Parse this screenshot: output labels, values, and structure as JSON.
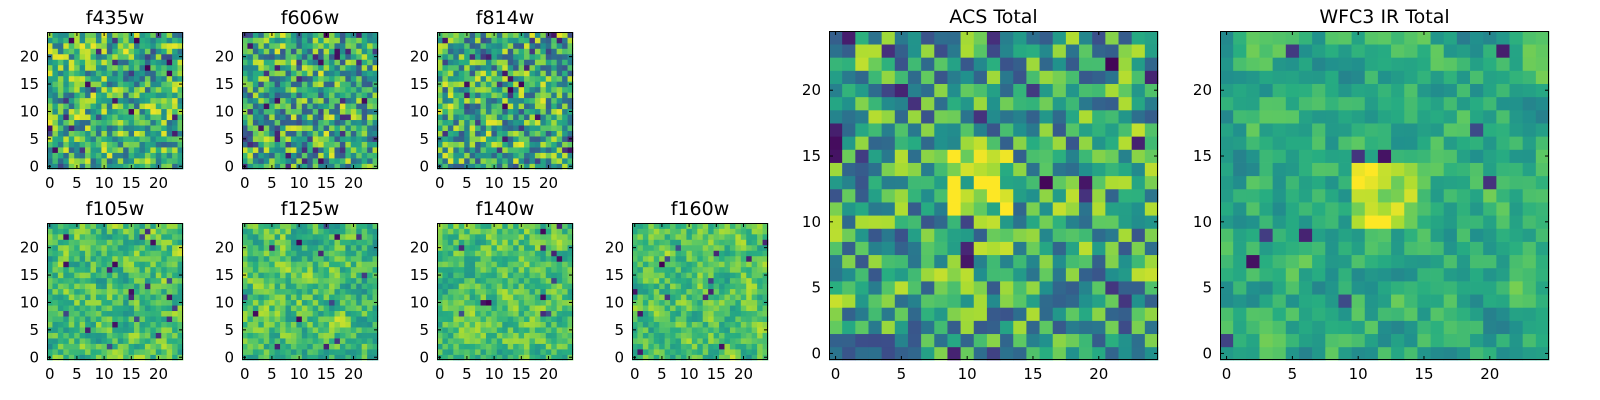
{
  "figure": {
    "colormap": "viridis",
    "color_range": [
      "#440154",
      "#fde725"
    ],
    "background": "#ffffff"
  },
  "chart_data": [
    {
      "type": "heatmap",
      "title": "f435w",
      "grid_size": 25,
      "xlim": [
        0,
        24
      ],
      "ylim": [
        0,
        24
      ],
      "xticks": [
        0,
        5,
        10,
        15,
        20
      ],
      "yticks": [
        0,
        5,
        10,
        15,
        20
      ],
      "seed": 11,
      "bias": 0.65,
      "noise": 0.35,
      "smooth": 0.1,
      "dark_frac": 0.05
    },
    {
      "type": "heatmap",
      "title": "f606w",
      "grid_size": 25,
      "xlim": [
        0,
        24
      ],
      "ylim": [
        0,
        24
      ],
      "xticks": [
        0,
        5,
        10,
        15,
        20
      ],
      "yticks": [
        0,
        5,
        10,
        15,
        20
      ],
      "seed": 23,
      "bias": 0.62,
      "noise": 0.38,
      "smooth": 0.1,
      "dark_frac": 0.06
    },
    {
      "type": "heatmap",
      "title": "f814w",
      "grid_size": 25,
      "xlim": [
        0,
        24
      ],
      "ylim": [
        0,
        24
      ],
      "xticks": [
        0,
        5,
        10,
        15,
        20
      ],
      "yticks": [
        0,
        5,
        10,
        15,
        20
      ],
      "seed": 37,
      "bias": 0.62,
      "noise": 0.38,
      "smooth": 0.1,
      "dark_frac": 0.06
    },
    {
      "type": "heatmap",
      "title": "f105w",
      "grid_size": 25,
      "xlim": [
        0,
        24
      ],
      "ylim": [
        0,
        24
      ],
      "xticks": [
        0,
        5,
        10,
        15,
        20
      ],
      "yticks": [
        0,
        5,
        10,
        15,
        20
      ],
      "seed": 41,
      "bias": 0.7,
      "noise": 0.3,
      "smooth": 0.45,
      "dark_frac": 0.03
    },
    {
      "type": "heatmap",
      "title": "f125w",
      "grid_size": 25,
      "xlim": [
        0,
        24
      ],
      "ylim": [
        0,
        24
      ],
      "xticks": [
        0,
        5,
        10,
        15,
        20
      ],
      "yticks": [
        0,
        5,
        10,
        15,
        20
      ],
      "seed": 53,
      "bias": 0.7,
      "noise": 0.3,
      "smooth": 0.45,
      "dark_frac": 0.03
    },
    {
      "type": "heatmap",
      "title": "f140w",
      "grid_size": 25,
      "xlim": [
        0,
        24
      ],
      "ylim": [
        0,
        24
      ],
      "xticks": [
        0,
        5,
        10,
        15,
        20
      ],
      "yticks": [
        0,
        5,
        10,
        15,
        20
      ],
      "seed": 67,
      "bias": 0.72,
      "noise": 0.28,
      "smooth": 0.5,
      "dark_frac": 0.02
    },
    {
      "type": "heatmap",
      "title": "f160w",
      "grid_size": 25,
      "xlim": [
        0,
        24
      ],
      "ylim": [
        0,
        24
      ],
      "xticks": [
        0,
        5,
        10,
        15,
        20
      ],
      "yticks": [
        0,
        5,
        10,
        15,
        20
      ],
      "seed": 79,
      "bias": 0.72,
      "noise": 0.28,
      "smooth": 0.5,
      "dark_frac": 0.03
    },
    {
      "type": "heatmap",
      "title": "ACS Total",
      "grid_size": 25,
      "xlim": [
        0,
        24
      ],
      "ylim": [
        0,
        24
      ],
      "xticks": [
        0,
        5,
        10,
        15,
        20
      ],
      "yticks": [
        0,
        5,
        10,
        15,
        20
      ],
      "seed": 97,
      "bias": 0.58,
      "noise": 0.38,
      "smooth": 0.15,
      "dark_frac": 0.05,
      "bright_region": {
        "x_range": [
          9,
          13
        ],
        "y_range": [
          10,
          15
        ]
      }
    },
    {
      "type": "heatmap",
      "title": "WFC3 IR Total",
      "grid_size": 25,
      "xlim": [
        0,
        24
      ],
      "ylim": [
        0,
        24
      ],
      "xticks": [
        0,
        5,
        10,
        15,
        20
      ],
      "yticks": [
        0,
        5,
        10,
        15,
        20
      ],
      "seed": 113,
      "bias": 0.62,
      "noise": 0.28,
      "smooth": 0.55,
      "dark_frac": 0.02,
      "bright_region": {
        "x_range": [
          10,
          14
        ],
        "y_range": [
          10,
          14
        ]
      }
    }
  ]
}
